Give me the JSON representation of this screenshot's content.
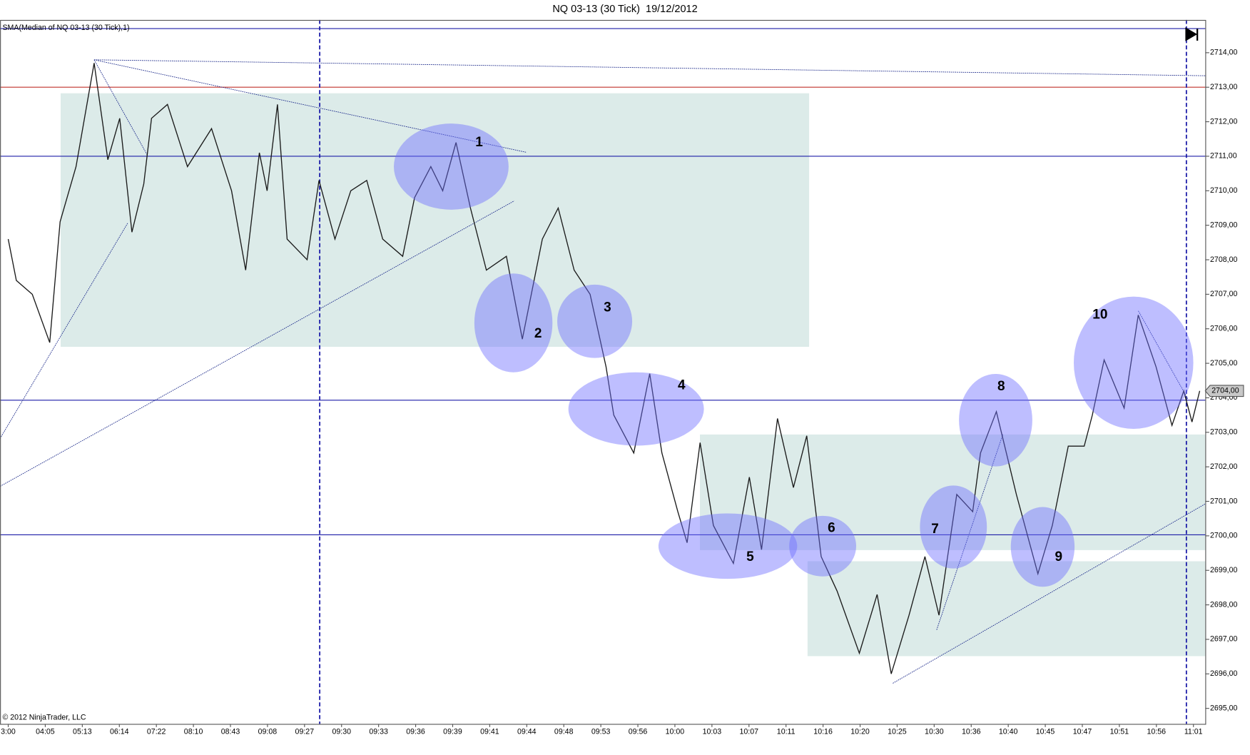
{
  "chart_data": {
    "type": "line",
    "title": "NQ 03-13 (30 Tick)  19/12/2012",
    "copyright": "© 2012 NinjaTrader, LLC",
    "last_price_label": "2704,00",
    "annotations": [
      "1",
      "2",
      "3",
      "4",
      "5",
      "6",
      "7",
      "8",
      "9",
      "10"
    ],
    "series": [
      {
        "name": "SMA(Median of NQ 03-13 (30 Tick),1)",
        "color": "#1a1a1a",
        "x": [
          0.0,
          0.22,
          0.65,
          1.12,
          1.4,
          1.83,
          2.32,
          2.69,
          3.01,
          3.34,
          3.66,
          3.87,
          4.3,
          4.84,
          5.49,
          6.03,
          6.41,
          6.78,
          6.99,
          7.27,
          7.53,
          8.07,
          8.39,
          8.82,
          9.25,
          9.68,
          10.11,
          10.65,
          10.97,
          11.41,
          11.73,
          12.09,
          12.48,
          12.91,
          13.45,
          13.88,
          14.42,
          14.85,
          15.28,
          15.71,
          16.14,
          16.35,
          16.89,
          17.32,
          17.65,
          18.08,
          18.33,
          18.68,
          19.04,
          19.58,
          20.01,
          20.34,
          20.77,
          21.2,
          21.56,
          21.95,
          22.38,
          22.98,
          23.46,
          23.84,
          24.32,
          24.75,
          25.13,
          25.61,
          26.04,
          26.25,
          26.68,
          27.22,
          27.8,
          28.19,
          28.62,
          29.05,
          29.27,
          29.59,
          30.13,
          30.51,
          30.99,
          31.42,
          31.74,
          31.96,
          32.17
        ],
        "values": [
          2708.6,
          2707.4,
          2707.0,
          2705.6,
          2709.1,
          2710.7,
          2713.7,
          2710.9,
          2712.1,
          2708.8,
          2710.2,
          2712.1,
          2712.5,
          2710.7,
          2711.8,
          2710.0,
          2707.7,
          2711.1,
          2710.0,
          2712.5,
          2708.6,
          2708.0,
          2710.3,
          2708.6,
          2710.0,
          2710.3,
          2708.6,
          2708.1,
          2709.8,
          2710.7,
          2710.0,
          2711.4,
          2709.5,
          2707.7,
          2708.1,
          2705.7,
          2708.6,
          2709.5,
          2707.7,
          2707.0,
          2704.9,
          2703.5,
          2702.4,
          2704.7,
          2702.4,
          2700.7,
          2699.8,
          2702.7,
          2700.3,
          2699.2,
          2701.7,
          2699.6,
          2703.4,
          2701.4,
          2702.9,
          2699.4,
          2698.4,
          2696.6,
          2698.3,
          2696.0,
          2697.7,
          2699.4,
          2697.7,
          2701.2,
          2700.7,
          2702.4,
          2703.6,
          2701.2,
          2698.9,
          2700.3,
          2702.6,
          2702.6,
          2703.5,
          2705.1,
          2703.7,
          2706.4,
          2704.9,
          2703.2,
          2704.2,
          2703.3,
          2704.2
        ]
      }
    ],
    "hlines": [
      {
        "value": 2714.7,
        "color": "#1c1ca8"
      },
      {
        "value": 2713.0,
        "color": "#c0302a"
      },
      {
        "value": 2711.0,
        "color": "#1c1ca8"
      },
      {
        "value": 2703.93,
        "color": "#1c1ca8"
      },
      {
        "value": 2700.03,
        "color": "#1c1ca8"
      }
    ],
    "vlines": [
      8.41,
      31.81
    ],
    "xlim": [
      -0.22,
      32.32
    ],
    "ylim": [
      2694.55,
      2714.95
    ],
    "xticks": [
      {
        "value": 0,
        "label": "3:00"
      },
      {
        "value": 1,
        "label": "04:05"
      },
      {
        "value": 2,
        "label": "05:13"
      },
      {
        "value": 3,
        "label": "06:14"
      },
      {
        "value": 4,
        "label": "07:22"
      },
      {
        "value": 5,
        "label": "08:10"
      },
      {
        "value": 6,
        "label": "08:43"
      },
      {
        "value": 7,
        "label": "09:08"
      },
      {
        "value": 8,
        "label": "09:27"
      },
      {
        "value": 9,
        "label": "09:30"
      },
      {
        "value": 10,
        "label": "09:33"
      },
      {
        "value": 11,
        "label": "09:36"
      },
      {
        "value": 12,
        "label": "09:39"
      },
      {
        "value": 13,
        "label": "09:41"
      },
      {
        "value": 14,
        "label": "09:44"
      },
      {
        "value": 15,
        "label": "09:48"
      },
      {
        "value": 16,
        "label": "09:53"
      },
      {
        "value": 17,
        "label": "09:56"
      },
      {
        "value": 18,
        "label": "10:00"
      },
      {
        "value": 19,
        "label": "10:03"
      },
      {
        "value": 20,
        "label": "10:07"
      },
      {
        "value": 21,
        "label": "10:11"
      },
      {
        "value": 22,
        "label": "10:16"
      },
      {
        "value": 23,
        "label": "10:20"
      },
      {
        "value": 24,
        "label": "10:25"
      },
      {
        "value": 25,
        "label": "10:30"
      },
      {
        "value": 26,
        "label": "10:36"
      },
      {
        "value": 27,
        "label": "10:40"
      },
      {
        "value": 28,
        "label": "10:45"
      },
      {
        "value": 29,
        "label": "10:47"
      },
      {
        "value": 30,
        "label": "10:51"
      },
      {
        "value": 31,
        "label": "10:56"
      },
      {
        "value": 32,
        "label": "11:01"
      }
    ],
    "yticks": [
      {
        "value": 2695,
        "label": "2695,00"
      },
      {
        "value": 2696,
        "label": "2696,00"
      },
      {
        "value": 2697,
        "label": "2697,00"
      },
      {
        "value": 2698,
        "label": "2698,00"
      },
      {
        "value": 2699,
        "label": "2699,00"
      },
      {
        "value": 2700,
        "label": "2700,00"
      },
      {
        "value": 2701,
        "label": "2701,00"
      },
      {
        "value": 2702,
        "label": "2702,00"
      },
      {
        "value": 2703,
        "label": "2703,00"
      },
      {
        "value": 2704,
        "label": "2704,00"
      },
      {
        "value": 2705,
        "label": "2705,00"
      },
      {
        "value": 2706,
        "label": "2706,00"
      },
      {
        "value": 2707,
        "label": "2707,00"
      },
      {
        "value": 2708,
        "label": "2708,00"
      },
      {
        "value": 2709,
        "label": "2709,00"
      },
      {
        "value": 2710,
        "label": "2710,00"
      },
      {
        "value": 2711,
        "label": "2711,00"
      },
      {
        "value": 2712,
        "label": "2712,00"
      },
      {
        "value": 2713,
        "label": "2713,00"
      },
      {
        "value": 2714,
        "label": "2714,00"
      }
    ]
  }
}
